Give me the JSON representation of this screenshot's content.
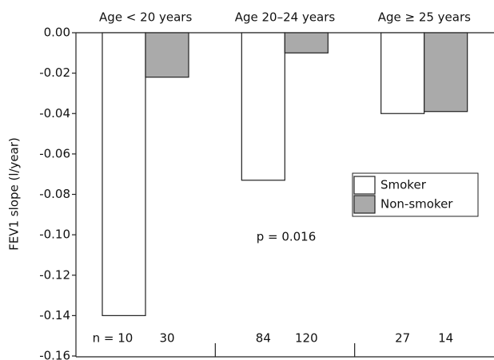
{
  "chart_data": {
    "type": "bar",
    "categories": [
      "Age < 20 years",
      "Age 20–24 years",
      "Age ≥ 25 years"
    ],
    "y_label": "FEV1 slope (l/year)",
    "series": [
      {
        "name": "Smoker",
        "color": "#ffffff",
        "values": [
          -0.14,
          -0.073,
          -0.04
        ]
      },
      {
        "name": "Non-smoker",
        "color": "#aaaaaa",
        "values": [
          -0.022,
          -0.01,
          -0.039
        ]
      }
    ],
    "ylim": [
      -0.16,
      0
    ],
    "yticks": [
      {
        "value": 0,
        "label": "0.00"
      },
      -0.02,
      -0.04,
      -0.06,
      -0.08,
      {
        "value": -0.1,
        "label": "-0.10"
      },
      -0.12,
      -0.14,
      -0.16
    ],
    "annotations": [
      "p = 0.016"
    ],
    "sample_size_labels": [
      [
        "n = 10",
        "30"
      ],
      [
        "84",
        "120"
      ],
      [
        "27",
        "14"
      ]
    ],
    "legend_position": "right"
  }
}
